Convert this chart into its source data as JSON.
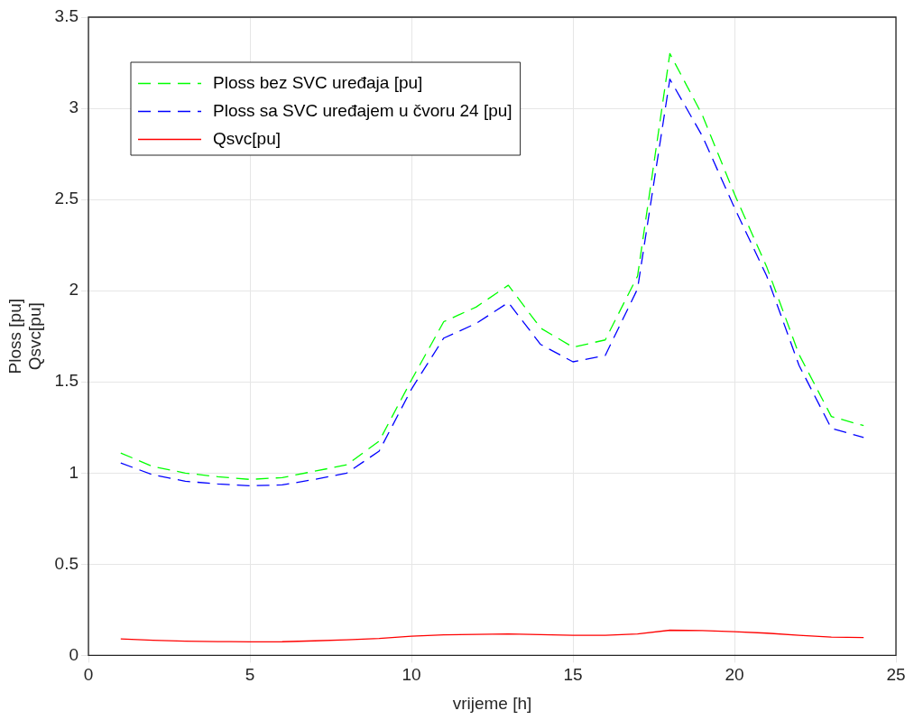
{
  "chart_data": {
    "type": "line",
    "xlabel": "vrijeme [h]",
    "ylabel": "Ploss [pu]\nQsvc[pu]",
    "x": [
      1,
      2,
      3,
      4,
      5,
      6,
      7,
      8,
      9,
      10,
      11,
      12,
      13,
      14,
      15,
      16,
      17,
      18,
      19,
      20,
      21,
      22,
      23,
      24
    ],
    "series": [
      {
        "name": "Ploss bez SVC uređaja [pu]",
        "color": "#00ff00",
        "line_style": "dashed",
        "values": [
          1.11,
          1.035,
          1.0,
          0.98,
          0.965,
          0.975,
          1.01,
          1.045,
          1.175,
          1.51,
          1.83,
          1.91,
          2.03,
          1.795,
          1.69,
          1.73,
          2.08,
          3.3,
          2.965,
          2.53,
          2.13,
          1.65,
          1.31,
          1.26
        ]
      },
      {
        "name": "Ploss sa SVC uređajem u čvoru 24 [pu]",
        "color": "#0000ff",
        "line_style": "dashed",
        "values": [
          1.055,
          0.99,
          0.955,
          0.94,
          0.93,
          0.935,
          0.965,
          1.0,
          1.12,
          1.46,
          1.74,
          1.82,
          1.935,
          1.705,
          1.61,
          1.645,
          2.01,
          3.16,
          2.85,
          2.455,
          2.08,
          1.59,
          1.245,
          1.195
        ]
      },
      {
        "name": "Qsvc[pu]",
        "color": "#ff0000",
        "line_style": "solid",
        "values": [
          0.09,
          0.083,
          0.078,
          0.076,
          0.074,
          0.075,
          0.08,
          0.085,
          0.093,
          0.105,
          0.113,
          0.115,
          0.118,
          0.114,
          0.11,
          0.11,
          0.118,
          0.138,
          0.136,
          0.13,
          0.122,
          0.11,
          0.1,
          0.098
        ]
      }
    ],
    "xlim": [
      0,
      25
    ],
    "xticks": [
      0,
      5,
      10,
      15,
      20,
      25
    ],
    "ylim": [
      0,
      3.5
    ],
    "yticks": [
      0,
      0.5,
      1,
      1.5,
      2,
      2.5,
      3,
      3.5
    ],
    "grid": true,
    "legend": "top left",
    "marker": "none"
  }
}
